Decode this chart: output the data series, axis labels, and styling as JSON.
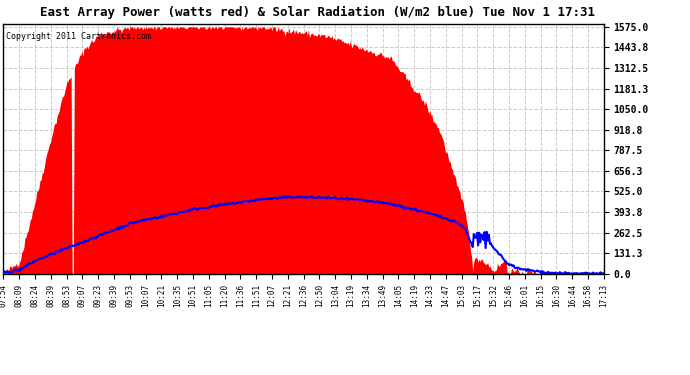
{
  "title": "East Array Power (watts red) & Solar Radiation (W/m2 blue) Tue Nov 1 17:31",
  "copyright": "Copyright 2011 Cartronics.com",
  "background_color": "#ffffff",
  "plot_bg_color": "#ffffff",
  "ymax": 1575.0,
  "ymin": 0.0,
  "yticks": [
    0.0,
    131.3,
    262.5,
    393.8,
    525.0,
    656.3,
    787.5,
    918.8,
    1050.0,
    1181.3,
    1312.5,
    1443.8,
    1575.0
  ],
  "grid_color": "#bbbbbb",
  "red_fill_color": "#ff0000",
  "blue_line_color": "#0000ff",
  "x_labels": [
    "07:54",
    "08:09",
    "08:24",
    "08:39",
    "08:53",
    "09:07",
    "09:23",
    "09:39",
    "09:53",
    "10:07",
    "10:21",
    "10:35",
    "10:51",
    "11:05",
    "11:20",
    "11:36",
    "11:51",
    "12:07",
    "12:21",
    "12:36",
    "12:50",
    "13:04",
    "13:19",
    "13:34",
    "13:49",
    "14:05",
    "14:19",
    "14:33",
    "14:47",
    "15:03",
    "15:17",
    "15:32",
    "15:46",
    "16:01",
    "16:15",
    "16:30",
    "16:44",
    "16:58",
    "17:13"
  ]
}
